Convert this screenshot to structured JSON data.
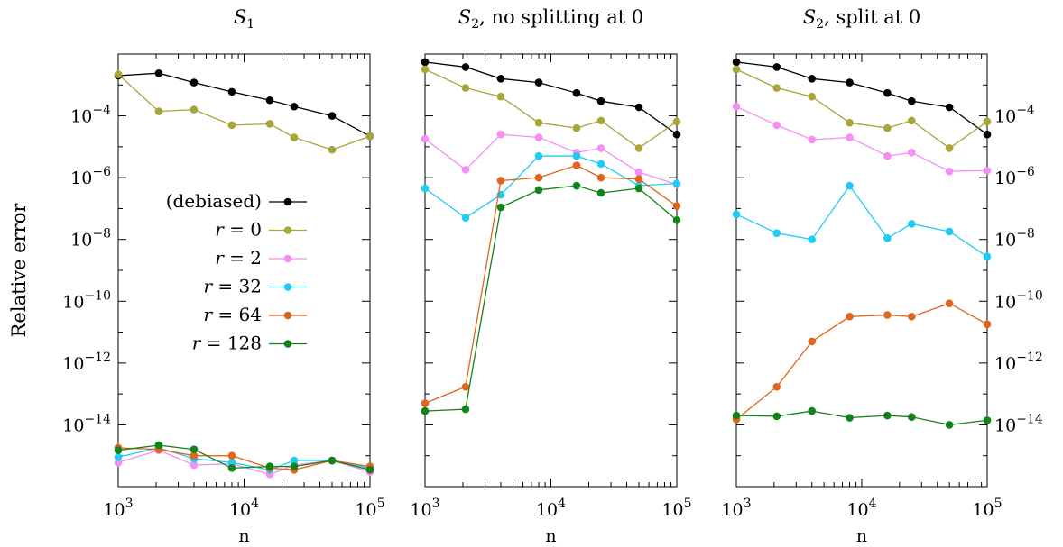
{
  "ylabel": "Relative error",
  "colors": {
    "debiased": "#000000",
    "r0": "#a8a63a",
    "r2": "#f58ff5",
    "r32": "#1fcdf2",
    "r64": "#e0651e",
    "r128": "#138218"
  },
  "legend": [
    "(debiased)",
    "r = 0",
    "r = 2",
    "r = 32",
    "r = 64",
    "r = 128"
  ],
  "chart_data": [
    {
      "type": "line",
      "title": "S1",
      "xlabel": "n",
      "ylabel": "Relative error",
      "xscale": "log",
      "yscale": "log",
      "xlim": [
        1000,
        100000
      ],
      "ylim": [
        1e-16,
        0.01
      ],
      "legend_position": "left-center",
      "x": [
        1000,
        2100,
        4000,
        8000,
        16000,
        25000,
        50000,
        100000
      ],
      "series": [
        {
          "name": "(debiased)",
          "color": "#000000",
          "values": [
            0.002,
            0.0024,
            0.0012,
            0.0006,
            0.00032,
            0.0002,
            0.0001,
            2.2e-05
          ]
        },
        {
          "name": "r = 0",
          "color": "#a8a63a",
          "values": [
            0.0022,
            0.00014,
            0.00016,
            5e-05,
            5.5e-05,
            2e-05,
            8e-06,
            2.2e-05
          ]
        },
        {
          "name": "r = 2",
          "color": "#f58ff5",
          "values": [
            6e-16,
            1.5e-15,
            5e-16,
            5.5e-16,
            2.5e-16,
            5e-16,
            7e-16,
            3e-16
          ]
        },
        {
          "name": "r = 32",
          "color": "#1fcdf2",
          "values": [
            9e-16,
            1.8e-15,
            8e-16,
            6e-16,
            3.5e-16,
            7e-16,
            7e-16,
            4e-16
          ]
        },
        {
          "name": "r = 64",
          "color": "#e0651e",
          "values": [
            1.8e-15,
            1.6e-15,
            1e-15,
            1e-15,
            4e-16,
            3.5e-16,
            7e-16,
            4.5e-16
          ]
        },
        {
          "name": "r = 128",
          "color": "#138218",
          "values": [
            1.5e-15,
            2.2e-15,
            1.6e-15,
            4e-16,
            4.5e-16,
            4.5e-16,
            7e-16,
            3.5e-16
          ]
        }
      ]
    },
    {
      "type": "line",
      "title": "S2, no splitting at 0",
      "xlabel": "n",
      "xscale": "log",
      "yscale": "log",
      "xlim": [
        1000,
        100000
      ],
      "ylim": [
        1e-16,
        0.01
      ],
      "x": [
        1000,
        2100,
        4000,
        8000,
        16000,
        25000,
        50000,
        100000
      ],
      "series": [
        {
          "name": "(debiased)",
          "color": "#000000",
          "values": [
            0.0055,
            0.0038,
            0.0016,
            0.0012,
            0.00055,
            0.0003,
            0.00019,
            2.5e-05
          ]
        },
        {
          "name": "r = 0",
          "color": "#a8a63a",
          "values": [
            0.0032,
            0.0008,
            0.00042,
            6e-05,
            4e-05,
            7e-05,
            9e-06,
            6.5e-05
          ]
        },
        {
          "name": "r = 2",
          "color": "#f58ff5",
          "values": [
            1.8e-05,
            1.8e-06,
            2.5e-05,
            2e-05,
            6.5e-06,
            9e-06,
            1.5e-06,
            6e-07
          ]
        },
        {
          "name": "r = 32",
          "color": "#1fcdf2",
          "values": [
            4.5e-07,
            5e-08,
            2.8e-07,
            5e-06,
            5e-06,
            2.8e-06,
            5.5e-07,
            6.5e-07
          ]
        },
        {
          "name": "r = 64",
          "color": "#e0651e",
          "values": [
            5e-14,
            1.7e-13,
            8e-07,
            1e-06,
            2.5e-06,
            1e-06,
            9e-07,
            1.2e-07
          ]
        },
        {
          "name": "r = 128",
          "color": "#138218",
          "values": [
            2.8e-14,
            3.2e-14,
            1.1e-07,
            4e-07,
            5.5e-07,
            3.2e-07,
            4.5e-07,
            4.2e-08
          ]
        }
      ]
    },
    {
      "type": "line",
      "title": "S2, split at 0",
      "xlabel": "n",
      "xscale": "log",
      "yscale": "log",
      "xlim": [
        1000,
        100000
      ],
      "ylim": [
        1e-16,
        0.01
      ],
      "x": [
        1000,
        2100,
        4000,
        8000,
        16000,
        25000,
        50000,
        100000
      ],
      "series": [
        {
          "name": "(debiased)",
          "color": "#000000",
          "values": [
            0.0055,
            0.0038,
            0.0016,
            0.0012,
            0.00055,
            0.0003,
            0.00019,
            2.5e-05
          ]
        },
        {
          "name": "r = 0",
          "color": "#a8a63a",
          "values": [
            0.0032,
            0.0008,
            0.00042,
            6e-05,
            4e-05,
            7e-05,
            9e-06,
            6.5e-05
          ]
        },
        {
          "name": "r = 2",
          "color": "#f58ff5",
          "values": [
            0.0002,
            5e-05,
            1.7e-05,
            2e-05,
            5e-06,
            6.5e-06,
            1.6e-06,
            1.7e-06
          ]
        },
        {
          "name": "r = 32",
          "color": "#1fcdf2",
          "values": [
            6.5e-08,
            1.6e-08,
            1e-08,
            5.5e-07,
            1.1e-08,
            3.2e-08,
            1.8e-08,
            2.8e-09
          ]
        },
        {
          "name": "r = 64",
          "color": "#e0651e",
          "values": [
            1.5e-14,
            1.7e-13,
            5e-12,
            3.2e-11,
            3.6e-11,
            3.2e-11,
            8.5e-11,
            1.8e-11
          ]
        },
        {
          "name": "r = 128",
          "color": "#138218",
          "values": [
            2e-14,
            1.9e-14,
            2.8e-14,
            1.7e-14,
            2e-14,
            1.8e-14,
            1e-14,
            1.4e-14
          ]
        }
      ]
    }
  ]
}
